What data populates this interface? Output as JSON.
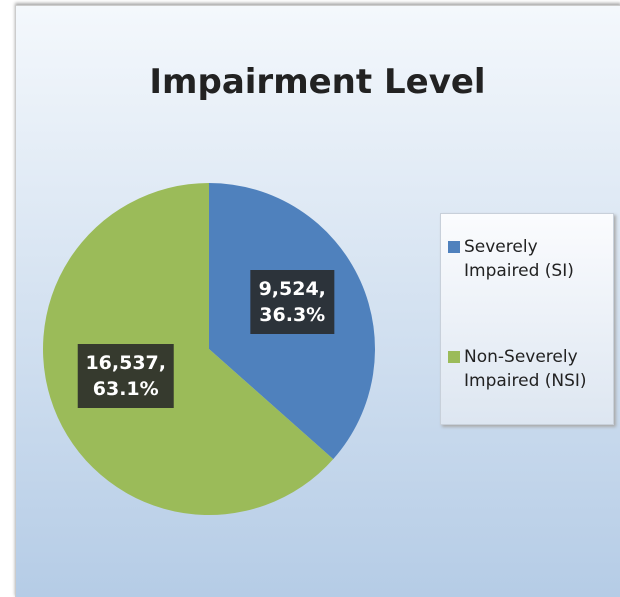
{
  "chart_data": {
    "type": "pie",
    "title": "Impairment Level",
    "categories": [
      "Severely Impaired (SI)",
      "Non-Severely Impaired (NSI)"
    ],
    "values": [
      9524,
      16537
    ],
    "value_labels": [
      "9,524,",
      "16,537,"
    ],
    "percents": [
      36.3,
      63.1
    ],
    "percent_labels": [
      "36.3%",
      "63.1%"
    ],
    "colors": [
      "#4f81bd",
      "#9bbb59"
    ],
    "legend": "right"
  }
}
